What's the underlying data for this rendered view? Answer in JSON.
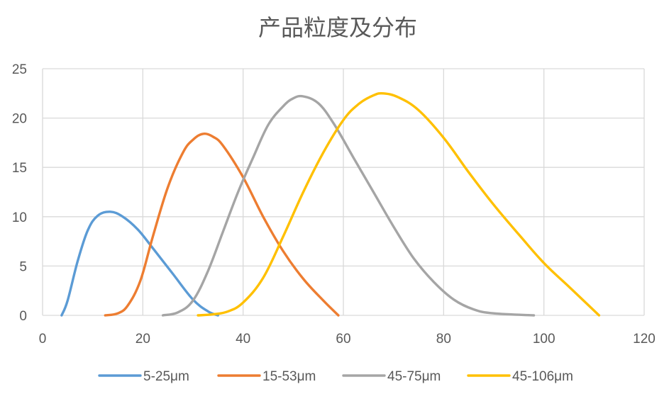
{
  "chart_data": {
    "type": "line",
    "title": "产品粒度及分布",
    "xlabel": "",
    "ylabel": "",
    "xlim": [
      0,
      120
    ],
    "ylim": [
      0,
      25
    ],
    "xticks": [
      "0",
      "20",
      "40",
      "60",
      "80",
      "100",
      "120"
    ],
    "yticks": [
      "0",
      "5",
      "10",
      "15",
      "20",
      "25"
    ],
    "grid": true,
    "legend_position": "bottom",
    "series": [
      {
        "name": "5-25μm",
        "color": "#5b9bd5",
        "points": [
          [
            3.8,
            0
          ],
          [
            5,
            1.5
          ],
          [
            7,
            5.5
          ],
          [
            9,
            8.6
          ],
          [
            11,
            10.1
          ],
          [
            13.5,
            10.5
          ],
          [
            16,
            10.0
          ],
          [
            19,
            8.7
          ],
          [
            22,
            6.8
          ],
          [
            26,
            4.2
          ],
          [
            30,
            1.6
          ],
          [
            33,
            0.4
          ],
          [
            35,
            0
          ]
        ]
      },
      {
        "name": "15-53μm",
        "color": "#ed7d31",
        "points": [
          [
            12.5,
            0
          ],
          [
            15,
            0.2
          ],
          [
            17,
            1.0
          ],
          [
            19.5,
            3.5
          ],
          [
            22,
            8.0
          ],
          [
            25,
            13.0
          ],
          [
            28,
            16.5
          ],
          [
            30,
            17.8
          ],
          [
            32,
            18.4
          ],
          [
            34,
            18.1
          ],
          [
            36,
            17.2
          ],
          [
            40,
            14.0
          ],
          [
            44,
            10.0
          ],
          [
            48,
            6.5
          ],
          [
            52,
            3.7
          ],
          [
            56,
            1.5
          ],
          [
            59,
            0
          ]
        ]
      },
      {
        "name": "45-75μm",
        "color": "#a5a5a5",
        "points": [
          [
            24,
            0
          ],
          [
            27,
            0.3
          ],
          [
            30,
            1.5
          ],
          [
            33,
            4.5
          ],
          [
            36,
            8.5
          ],
          [
            39,
            12.5
          ],
          [
            42,
            16.0
          ],
          [
            45,
            19.3
          ],
          [
            48,
            21.2
          ],
          [
            50,
            22.0
          ],
          [
            52,
            22.2
          ],
          [
            55,
            21.5
          ],
          [
            58,
            19.5
          ],
          [
            62,
            16.0
          ],
          [
            66,
            12.5
          ],
          [
            70,
            9.0
          ],
          [
            74,
            5.8
          ],
          [
            78,
            3.4
          ],
          [
            82,
            1.6
          ],
          [
            86,
            0.6
          ],
          [
            90,
            0.2
          ],
          [
            98,
            0
          ]
        ]
      },
      {
        "name": "45-106μm",
        "color": "#ffc000",
        "points": [
          [
            31,
            0
          ],
          [
            34,
            0.1
          ],
          [
            37,
            0.4
          ],
          [
            40,
            1.3
          ],
          [
            44,
            3.8
          ],
          [
            48,
            8.0
          ],
          [
            52,
            12.5
          ],
          [
            56,
            16.5
          ],
          [
            60,
            19.8
          ],
          [
            63,
            21.4
          ],
          [
            66,
            22.3
          ],
          [
            68,
            22.5
          ],
          [
            71,
            22.1
          ],
          [
            75,
            20.8
          ],
          [
            80,
            18.0
          ],
          [
            85,
            14.5
          ],
          [
            90,
            11.2
          ],
          [
            95,
            8.2
          ],
          [
            100,
            5.3
          ],
          [
            105,
            2.9
          ],
          [
            111,
            0
          ]
        ]
      }
    ]
  }
}
